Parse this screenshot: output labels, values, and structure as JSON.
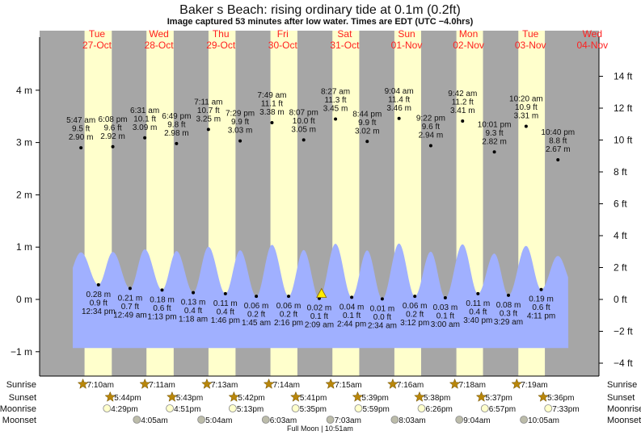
{
  "title": "Baker s Beach: rising  ordinary tide at 0.1m (0.2ft)",
  "subtitle": "Image captured 53 minutes after low water. Times are EDT (UTC −4.0hrs)",
  "colors": {
    "night": "#a6a6a6",
    "day": "#ffffcc",
    "water": "#a0b0ff",
    "day_label": "#ff2020",
    "sun": "#b8860b",
    "moonrise": "#ffffcc",
    "moonset": "#bcbcaa",
    "marker": "#ffee00"
  },
  "chart_data": {
    "type": "area",
    "title": "Baker s Beach: rising  ordinary tide at 0.1m (0.2ft)",
    "days": [
      {
        "dow": "Tue",
        "date": "27-Oct"
      },
      {
        "dow": "Wed",
        "date": "28-Oct"
      },
      {
        "dow": "Thu",
        "date": "29-Oct"
      },
      {
        "dow": "Fri",
        "date": "30-Oct"
      },
      {
        "dow": "Sat",
        "date": "31-Oct"
      },
      {
        "dow": "Sun",
        "date": "01-Nov"
      },
      {
        "dow": "Mon",
        "date": "02-Nov"
      },
      {
        "dow": "Tue",
        "date": "03-Nov"
      },
      {
        "dow": "Wed",
        "date": "04-Nov"
      }
    ],
    "left_axis": {
      "unit": "m",
      "ticks": [
        "−1 m",
        "0 m",
        "1 m",
        "2 m",
        "3 m",
        "4 m"
      ],
      "values": [
        -1,
        0,
        1,
        2,
        3,
        4
      ]
    },
    "right_axis": {
      "unit": "ft",
      "ticks": [
        "−4 ft",
        "−2 ft",
        "0 ft",
        "2 ft",
        "4 ft",
        "6 ft",
        "8 ft",
        "10 ft",
        "12 ft",
        "14 ft"
      ],
      "values": [
        -4,
        -2,
        0,
        2,
        4,
        6,
        8,
        10,
        12,
        14
      ]
    },
    "extremes": [
      {
        "day": 0,
        "type": "high",
        "time": "5:47 am",
        "hours": 5.78,
        "m": 2.9,
        "m_label": "2.90 m",
        "ft_label": "9.5 ft"
      },
      {
        "day": 0,
        "type": "low",
        "time": "12:34 pm",
        "hours": 12.57,
        "m": 0.28,
        "m_label": "0.28 m",
        "ft_label": "0.9 ft"
      },
      {
        "day": 0,
        "type": "high",
        "time": "6:08 pm",
        "hours": 18.13,
        "m": 2.92,
        "m_label": "2.92 m",
        "ft_label": "9.6 ft"
      },
      {
        "day": 1,
        "type": "low",
        "time": "12:49 am",
        "hours": 0.82,
        "m": 0.21,
        "m_label": "0.21 m",
        "ft_label": "0.7 ft"
      },
      {
        "day": 1,
        "type": "high",
        "time": "6:31 am",
        "hours": 6.52,
        "m": 3.09,
        "m_label": "3.09 m",
        "ft_label": "10.1 ft"
      },
      {
        "day": 1,
        "type": "low",
        "time": "1:13 pm",
        "hours": 13.22,
        "m": 0.18,
        "m_label": "0.18 m",
        "ft_label": "0.6 ft"
      },
      {
        "day": 1,
        "type": "high",
        "time": "6:49 pm",
        "hours": 18.82,
        "m": 2.98,
        "m_label": "2.98 m",
        "ft_label": "9.8 ft"
      },
      {
        "day": 2,
        "type": "low",
        "time": "1:18 am",
        "hours": 1.3,
        "m": 0.13,
        "m_label": "0.13 m",
        "ft_label": "0.4 ft"
      },
      {
        "day": 2,
        "type": "high",
        "time": "7:11 am",
        "hours": 7.18,
        "m": 3.25,
        "m_label": "3.25 m",
        "ft_label": "10.7 ft"
      },
      {
        "day": 2,
        "type": "low",
        "time": "1:46 pm",
        "hours": 13.77,
        "m": 0.11,
        "m_label": "0.11 m",
        "ft_label": "0.4 ft"
      },
      {
        "day": 2,
        "type": "high",
        "time": "7:29 pm",
        "hours": 19.48,
        "m": 3.03,
        "m_label": "3.03 m",
        "ft_label": "9.9 ft"
      },
      {
        "day": 3,
        "type": "low",
        "time": "1:45 am",
        "hours": 1.75,
        "m": 0.06,
        "m_label": "0.06 m",
        "ft_label": "0.2 ft"
      },
      {
        "day": 3,
        "type": "high",
        "time": "7:49 am",
        "hours": 7.82,
        "m": 3.38,
        "m_label": "3.38 m",
        "ft_label": "11.1 ft"
      },
      {
        "day": 3,
        "type": "low",
        "time": "2:16 pm",
        "hours": 14.27,
        "m": 0.06,
        "m_label": "0.06 m",
        "ft_label": "0.2 ft"
      },
      {
        "day": 3,
        "type": "high",
        "time": "8:07 pm",
        "hours": 20.12,
        "m": 3.05,
        "m_label": "3.05 m",
        "ft_label": "10.0 ft"
      },
      {
        "day": 4,
        "type": "low",
        "time": "2:09 am",
        "hours": 2.15,
        "m": 0.02,
        "m_label": "0.02 m",
        "ft_label": "0.1 ft"
      },
      {
        "day": 4,
        "type": "high",
        "time": "8:27 am",
        "hours": 8.45,
        "m": 3.45,
        "m_label": "3.45 m",
        "ft_label": "11.3 ft"
      },
      {
        "day": 4,
        "type": "low",
        "time": "2:44 pm",
        "hours": 14.73,
        "m": 0.04,
        "m_label": "0.04 m",
        "ft_label": "0.1 ft"
      },
      {
        "day": 4,
        "type": "high",
        "time": "8:44 pm",
        "hours": 20.73,
        "m": 3.02,
        "m_label": "3.02 m",
        "ft_label": "9.9 ft"
      },
      {
        "day": 5,
        "type": "low",
        "time": "2:34 am",
        "hours": 2.57,
        "m": 0.01,
        "m_label": "0.01 m",
        "ft_label": "0.0 ft"
      },
      {
        "day": 5,
        "type": "high",
        "time": "9:04 am",
        "hours": 9.07,
        "m": 3.46,
        "m_label": "3.46 m",
        "ft_label": "11.4 ft"
      },
      {
        "day": 5,
        "type": "low",
        "time": "3:12 pm",
        "hours": 15.2,
        "m": 0.06,
        "m_label": "0.06 m",
        "ft_label": "0.2 ft"
      },
      {
        "day": 5,
        "type": "high",
        "time": "9:22 pm",
        "hours": 21.37,
        "m": 2.94,
        "m_label": "2.94 m",
        "ft_label": "9.6 ft"
      },
      {
        "day": 6,
        "type": "low",
        "time": "3:00 am",
        "hours": 3.0,
        "m": 0.03,
        "m_label": "0.03 m",
        "ft_label": "0.1 ft"
      },
      {
        "day": 6,
        "type": "high",
        "time": "9:42 am",
        "hours": 9.7,
        "m": 3.41,
        "m_label": "3.41 m",
        "ft_label": "11.2 ft"
      },
      {
        "day": 6,
        "type": "low",
        "time": "3:40 pm",
        "hours": 15.67,
        "m": 0.11,
        "m_label": "0.11 m",
        "ft_label": "0.4 ft"
      },
      {
        "day": 6,
        "type": "high",
        "time": "10:01 pm",
        "hours": 22.02,
        "m": 2.82,
        "m_label": "2.82 m",
        "ft_label": "9.3 ft"
      },
      {
        "day": 7,
        "type": "low",
        "time": "3:29 am",
        "hours": 3.48,
        "m": 0.08,
        "m_label": "0.08 m",
        "ft_label": "0.3 ft"
      },
      {
        "day": 7,
        "type": "high",
        "time": "10:20 am",
        "hours": 10.33,
        "m": 3.31,
        "m_label": "3.31 m",
        "ft_label": "10.9 ft"
      },
      {
        "day": 7,
        "type": "low",
        "time": "4:11 pm",
        "hours": 16.18,
        "m": 0.19,
        "m_label": "0.19 m",
        "ft_label": "0.6 ft"
      },
      {
        "day": 7,
        "type": "high",
        "time": "10:40 pm",
        "hours": 22.67,
        "m": 2.67,
        "m_label": "2.67 m",
        "ft_label": "8.8 ft"
      }
    ],
    "current": {
      "day": 4,
      "hours": 3.03,
      "m": 0.1,
      "state": "rising"
    }
  },
  "almanac": {
    "labels": {
      "sunrise": "Sunrise",
      "sunset": "Sunset",
      "moonrise": "Moonrise",
      "moonset": "Moonset"
    },
    "sunrise": [
      {
        "day": 0,
        "time": "7:10am",
        "hours": 7.17
      },
      {
        "day": 1,
        "time": "7:11am",
        "hours": 7.18
      },
      {
        "day": 2,
        "time": "7:13am",
        "hours": 7.22
      },
      {
        "day": 3,
        "time": "7:14am",
        "hours": 7.23
      },
      {
        "day": 4,
        "time": "7:15am",
        "hours": 7.25
      },
      {
        "day": 5,
        "time": "7:16am",
        "hours": 7.27
      },
      {
        "day": 6,
        "time": "7:18am",
        "hours": 7.3
      },
      {
        "day": 7,
        "time": "7:19am",
        "hours": 7.32
      }
    ],
    "sunset": [
      {
        "day": 0,
        "time": "5:44pm",
        "hours": 17.73
      },
      {
        "day": 1,
        "time": "5:43pm",
        "hours": 17.72
      },
      {
        "day": 2,
        "time": "5:42pm",
        "hours": 17.7
      },
      {
        "day": 3,
        "time": "5:41pm",
        "hours": 17.68
      },
      {
        "day": 4,
        "time": "5:39pm",
        "hours": 17.65
      },
      {
        "day": 5,
        "time": "5:38pm",
        "hours": 17.63
      },
      {
        "day": 6,
        "time": "5:37pm",
        "hours": 17.62
      },
      {
        "day": 7,
        "time": "5:36pm",
        "hours": 17.6
      }
    ],
    "moonrise": [
      {
        "day": 0,
        "time": "4:29pm",
        "hours": 16.48
      },
      {
        "day": 1,
        "time": "4:51pm",
        "hours": 16.85
      },
      {
        "day": 2,
        "time": "5:13pm",
        "hours": 17.22
      },
      {
        "day": 3,
        "time": "5:35pm",
        "hours": 17.58
      },
      {
        "day": 4,
        "time": "5:59pm",
        "hours": 17.98
      },
      {
        "day": 5,
        "time": "6:26pm",
        "hours": 18.43
      },
      {
        "day": 6,
        "time": "6:57pm",
        "hours": 18.95
      },
      {
        "day": 7,
        "time": "7:33pm",
        "hours": 19.55
      }
    ],
    "moonset": [
      {
        "day": 1,
        "time": "4:05am",
        "hours": 4.08
      },
      {
        "day": 2,
        "time": "5:04am",
        "hours": 5.07
      },
      {
        "day": 3,
        "time": "6:03am",
        "hours": 6.05
      },
      {
        "day": 4,
        "time": "7:03am",
        "hours": 7.05
      },
      {
        "day": 5,
        "time": "8:03am",
        "hours": 8.05
      },
      {
        "day": 6,
        "time": "9:04am",
        "hours": 9.07
      },
      {
        "day": 7,
        "time": "10:05am",
        "hours": 10.08
      }
    ],
    "moon_phase": "Full Moon | 10:51am"
  }
}
